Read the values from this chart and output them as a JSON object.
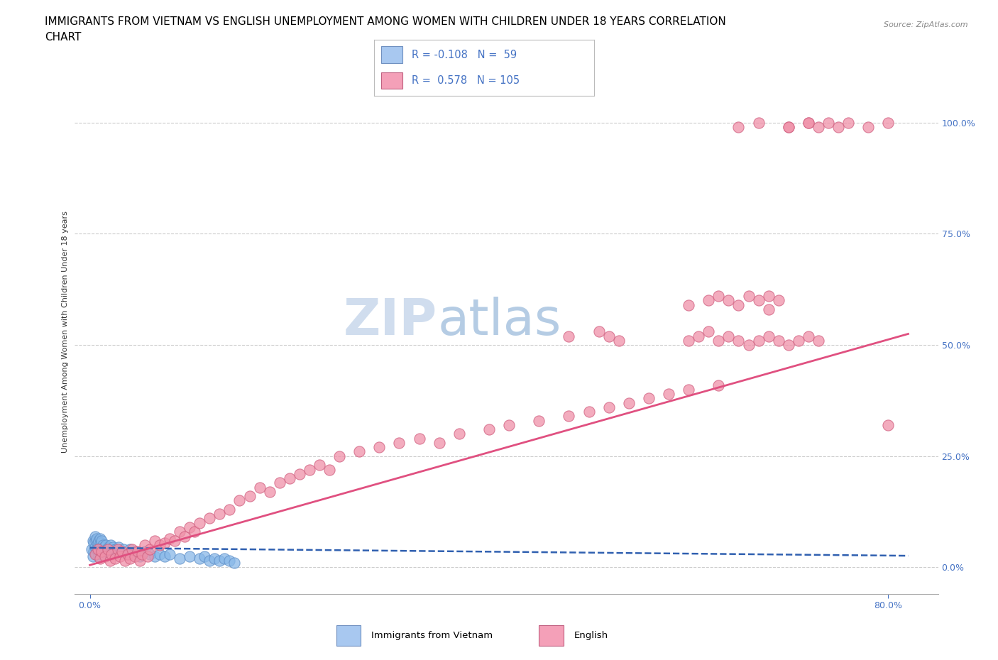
{
  "title_line1": "IMMIGRANTS FROM VIETNAM VS ENGLISH UNEMPLOYMENT AMONG WOMEN WITH CHILDREN UNDER 18 YEARS CORRELATION",
  "title_line2": "CHART",
  "source_text": "Source: ZipAtlas.com",
  "ylabel": "Unemployment Among Women with Children Under 18 years",
  "ytick_labels": [
    "0.0%",
    "25.0%",
    "50.0%",
    "75.0%",
    "100.0%"
  ],
  "ytick_values": [
    0.0,
    0.25,
    0.5,
    0.75,
    1.0
  ],
  "xtick_labels": [
    "0.0%",
    "80.0%"
  ],
  "xtick_values": [
    0.0,
    0.8
  ],
  "xlim": [
    -0.015,
    0.85
  ],
  "ylim": [
    -0.06,
    1.12
  ],
  "scatter_blue_color": "#88b8e8",
  "scatter_blue_edge": "#6090c8",
  "scatter_pink_color": "#f090a8",
  "scatter_pink_edge": "#d06080",
  "trendline_blue_color": "#3060b0",
  "trendline_pink_color": "#e05080",
  "watermark_color": "#dde8f5",
  "background_color": "#ffffff",
  "title_fontsize": 11,
  "tick_fontsize": 9,
  "tick_color": "#4472c4",
  "legend_label_blue": "R = -0.108   N =  59",
  "legend_label_pink": "R =  0.578   N = 105",
  "bottom_legend_blue": "Immigrants from Vietnam",
  "bottom_legend_pink": "English",
  "blue_x": [
    0.002,
    0.003,
    0.003,
    0.004,
    0.004,
    0.005,
    0.005,
    0.006,
    0.006,
    0.007,
    0.007,
    0.008,
    0.008,
    0.009,
    0.009,
    0.01,
    0.01,
    0.011,
    0.011,
    0.012,
    0.012,
    0.013,
    0.013,
    0.014,
    0.015,
    0.016,
    0.017,
    0.018,
    0.019,
    0.02,
    0.021,
    0.022,
    0.023,
    0.025,
    0.027,
    0.029,
    0.031,
    0.034,
    0.037,
    0.04,
    0.043,
    0.046,
    0.05,
    0.055,
    0.06,
    0.065,
    0.07,
    0.075,
    0.08,
    0.09,
    0.1,
    0.11,
    0.115,
    0.12,
    0.125,
    0.13,
    0.135,
    0.14,
    0.145
  ],
  "blue_y": [
    0.04,
    0.025,
    0.06,
    0.035,
    0.055,
    0.045,
    0.07,
    0.03,
    0.06,
    0.04,
    0.065,
    0.035,
    0.055,
    0.025,
    0.06,
    0.045,
    0.065,
    0.03,
    0.055,
    0.04,
    0.06,
    0.035,
    0.05,
    0.045,
    0.035,
    0.05,
    0.04,
    0.03,
    0.045,
    0.04,
    0.05,
    0.035,
    0.045,
    0.04,
    0.035,
    0.045,
    0.035,
    0.04,
    0.03,
    0.04,
    0.03,
    0.035,
    0.025,
    0.035,
    0.03,
    0.025,
    0.03,
    0.025,
    0.03,
    0.02,
    0.025,
    0.02,
    0.025,
    0.015,
    0.02,
    0.015,
    0.02,
    0.015,
    0.01
  ],
  "pink_x": [
    0.005,
    0.008,
    0.01,
    0.012,
    0.015,
    0.018,
    0.02,
    0.022,
    0.025,
    0.028,
    0.03,
    0.032,
    0.035,
    0.038,
    0.04,
    0.042,
    0.045,
    0.048,
    0.05,
    0.052,
    0.055,
    0.058,
    0.06,
    0.065,
    0.07,
    0.075,
    0.08,
    0.085,
    0.09,
    0.095,
    0.1,
    0.105,
    0.11,
    0.12,
    0.13,
    0.14,
    0.15,
    0.16,
    0.17,
    0.18,
    0.19,
    0.2,
    0.21,
    0.22,
    0.23,
    0.24,
    0.25,
    0.27,
    0.29,
    0.31,
    0.33,
    0.35,
    0.37,
    0.4,
    0.42,
    0.45,
    0.48,
    0.5,
    0.52,
    0.54,
    0.56,
    0.58,
    0.6,
    0.63,
    0.48,
    0.51,
    0.52,
    0.53,
    0.7,
    0.72,
    0.73,
    0.74,
    0.75,
    0.76,
    0.78,
    0.8,
    0.8,
    0.7,
    0.72,
    0.65,
    0.67,
    0.68,
    0.69,
    0.68,
    0.6,
    0.62,
    0.63,
    0.64,
    0.65,
    0.66,
    0.67,
    0.6,
    0.61,
    0.62,
    0.63,
    0.64,
    0.65,
    0.66,
    0.67,
    0.68,
    0.69,
    0.7,
    0.71,
    0.72,
    0.73
  ],
  "pink_y": [
    0.03,
    0.04,
    0.02,
    0.035,
    0.025,
    0.04,
    0.015,
    0.03,
    0.02,
    0.04,
    0.025,
    0.035,
    0.015,
    0.03,
    0.02,
    0.04,
    0.025,
    0.035,
    0.015,
    0.03,
    0.05,
    0.025,
    0.04,
    0.06,
    0.05,
    0.055,
    0.065,
    0.06,
    0.08,
    0.07,
    0.09,
    0.08,
    0.1,
    0.11,
    0.12,
    0.13,
    0.15,
    0.16,
    0.18,
    0.17,
    0.19,
    0.2,
    0.21,
    0.22,
    0.23,
    0.22,
    0.25,
    0.26,
    0.27,
    0.28,
    0.29,
    0.28,
    0.3,
    0.31,
    0.32,
    0.33,
    0.34,
    0.35,
    0.36,
    0.37,
    0.38,
    0.39,
    0.4,
    0.41,
    0.52,
    0.53,
    0.52,
    0.51,
    0.99,
    1.0,
    0.99,
    1.0,
    0.99,
    1.0,
    0.99,
    1.0,
    0.32,
    0.99,
    1.0,
    0.99,
    1.0,
    0.61,
    0.6,
    0.58,
    0.59,
    0.6,
    0.61,
    0.6,
    0.59,
    0.61,
    0.6,
    0.51,
    0.52,
    0.53,
    0.51,
    0.52,
    0.51,
    0.5,
    0.51,
    0.52,
    0.51,
    0.5,
    0.51,
    0.52,
    0.51
  ],
  "blue_trend_x": [
    0.0,
    0.82
  ],
  "blue_trend_y": [
    0.044,
    0.026
  ],
  "pink_trend_x": [
    0.0,
    0.82
  ],
  "pink_trend_y": [
    0.005,
    0.525
  ]
}
